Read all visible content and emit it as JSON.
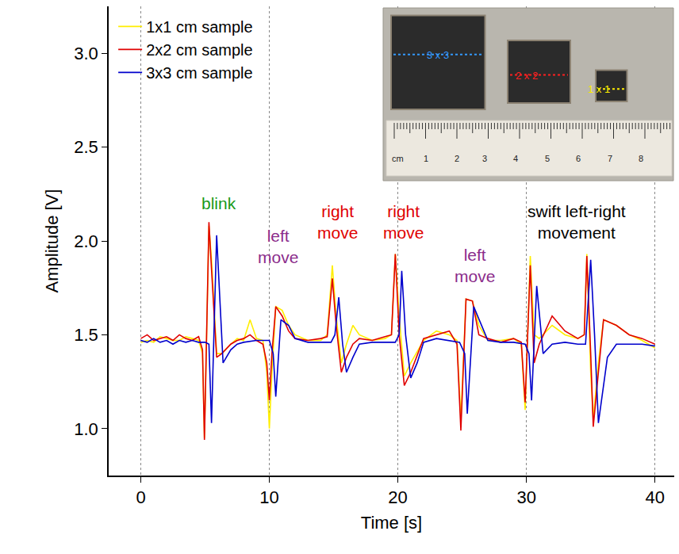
{
  "chart_data": {
    "type": "line",
    "x_label": "Time [s]",
    "y_label": "Amplitude [V]",
    "xlim": [
      -2.5,
      41.5
    ],
    "xticks": [
      0,
      10,
      20,
      30,
      40
    ],
    "ylim": [
      0.75,
      3.25
    ],
    "yticks": [
      {
        "value": 1,
        "label": "1.0"
      },
      1.5,
      {
        "value": 2,
        "label": "2.0"
      },
      2.5,
      {
        "value": 3,
        "label": "3.0"
      }
    ],
    "grid": "x",
    "legend": "top-left",
    "series": [
      {
        "name": "1x1 cm sample",
        "color": "#ffee00",
        "x": [
          0,
          0.5,
          1,
          1.5,
          2,
          2.5,
          3,
          3.5,
          4,
          4.5,
          4.8,
          4.95,
          5.3,
          5.5,
          5.9,
          6.3,
          7,
          7.5,
          8,
          8.5,
          9,
          9.5,
          9.8,
          10.0,
          10.2,
          10.5,
          11,
          11.5,
          12,
          13,
          14,
          14.5,
          14.9,
          15.2,
          15.6,
          16,
          16.5,
          17,
          18,
          19,
          19.5,
          19.8,
          20.1,
          20.5,
          21,
          22,
          23,
          24,
          24.6,
          24.9,
          25.3,
          25.8,
          26.3,
          27,
          28,
          29,
          29.6,
          29.9,
          30.3,
          30.6,
          31,
          32,
          33,
          34,
          34.5,
          34.7,
          35.0,
          35.2,
          35.6,
          36,
          37,
          38,
          39,
          40
        ],
        "values": [
          1.46,
          1.47,
          1.46,
          1.49,
          1.48,
          1.47,
          1.47,
          1.49,
          1.48,
          1.47,
          1.4,
          0.95,
          2.08,
          1.9,
          1.4,
          1.4,
          1.45,
          1.48,
          1.47,
          1.58,
          1.48,
          1.47,
          1.3,
          1.0,
          1.3,
          1.65,
          1.63,
          1.55,
          1.5,
          1.47,
          1.47,
          1.5,
          1.87,
          1.6,
          1.35,
          1.45,
          1.55,
          1.5,
          1.47,
          1.48,
          1.5,
          1.93,
          1.6,
          1.28,
          1.35,
          1.47,
          1.52,
          1.5,
          1.47,
          1.05,
          1.69,
          1.68,
          1.55,
          1.47,
          1.47,
          1.48,
          1.45,
          1.1,
          1.92,
          1.5,
          1.48,
          1.55,
          1.5,
          1.48,
          1.5,
          1.93,
          1.3,
          1.05,
          1.35,
          1.58,
          1.55,
          1.5,
          1.47,
          1.43
        ]
      },
      {
        "name": "2x2 cm sample",
        "color": "#e00000",
        "x": [
          0,
          0.5,
          1,
          1.5,
          2,
          2.5,
          3,
          3.5,
          4,
          4.5,
          4.8,
          4.95,
          5.3,
          5.5,
          5.9,
          6.3,
          7,
          7.5,
          8,
          8.5,
          9,
          9.5,
          9.8,
          10.0,
          10.2,
          10.5,
          11,
          11.5,
          12,
          13,
          14,
          14.5,
          14.9,
          15.2,
          15.6,
          16,
          16.5,
          17,
          18,
          19,
          19.5,
          19.8,
          20.1,
          20.5,
          21,
          22,
          23,
          24,
          24.6,
          24.9,
          25.3,
          25.8,
          26.3,
          27,
          28,
          29,
          29.6,
          29.9,
          30.3,
          30.6,
          31,
          32,
          33,
          34,
          34.5,
          34.7,
          35.0,
          35.2,
          35.6,
          36,
          37,
          38,
          39,
          40
        ],
        "values": [
          1.48,
          1.5,
          1.47,
          1.48,
          1.49,
          1.47,
          1.5,
          1.48,
          1.47,
          1.49,
          1.42,
          0.94,
          2.1,
          1.85,
          1.38,
          1.4,
          1.45,
          1.47,
          1.48,
          1.5,
          1.47,
          1.45,
          1.35,
          1.15,
          1.4,
          1.65,
          1.6,
          1.52,
          1.48,
          1.47,
          1.48,
          1.49,
          1.8,
          1.55,
          1.3,
          1.38,
          1.45,
          1.48,
          1.47,
          1.49,
          1.5,
          1.93,
          1.5,
          1.23,
          1.3,
          1.48,
          1.5,
          1.52,
          1.45,
          0.99,
          1.69,
          1.68,
          1.5,
          1.48,
          1.46,
          1.48,
          1.46,
          1.14,
          1.87,
          1.35,
          1.45,
          1.6,
          1.52,
          1.48,
          1.5,
          1.92,
          1.4,
          1.01,
          1.3,
          1.58,
          1.55,
          1.5,
          1.48,
          1.45
        ]
      },
      {
        "name": "3x3 cm sample",
        "color": "#0000cc",
        "x": [
          0,
          0.5,
          1,
          1.5,
          2,
          2.5,
          3,
          3.5,
          4,
          4.5,
          5,
          5.3,
          5.5,
          5.9,
          6.4,
          7,
          7.5,
          8,
          9,
          10,
          10.3,
          10.5,
          10.9,
          11.5,
          12,
          13,
          14,
          14.8,
          15.1,
          15.4,
          15.7,
          16.0,
          16.5,
          17,
          18,
          19,
          19.8,
          20.1,
          20.3,
          20.6,
          21.0,
          21.5,
          22,
          23,
          24,
          24.8,
          25.2,
          25.4,
          25.9,
          26.5,
          27,
          28,
          29,
          29.9,
          30.2,
          30.4,
          30.8,
          31.3,
          32,
          33,
          34,
          34.6,
          35.0,
          35.3,
          35.6,
          36.3,
          37,
          38,
          39,
          40
        ],
        "values": [
          1.47,
          1.46,
          1.48,
          1.46,
          1.47,
          1.45,
          1.47,
          1.46,
          1.47,
          1.46,
          1.46,
          1.45,
          1.03,
          2.03,
          1.35,
          1.42,
          1.45,
          1.46,
          1.47,
          1.47,
          1.4,
          1.17,
          1.58,
          1.55,
          1.48,
          1.46,
          1.46,
          1.46,
          1.5,
          1.7,
          1.45,
          1.3,
          1.38,
          1.45,
          1.46,
          1.46,
          1.46,
          1.5,
          1.84,
          1.5,
          1.27,
          1.35,
          1.46,
          1.48,
          1.47,
          1.46,
          1.4,
          1.08,
          1.65,
          1.55,
          1.47,
          1.46,
          1.46,
          1.45,
          1.4,
          1.15,
          1.76,
          1.4,
          1.45,
          1.46,
          1.45,
          1.45,
          1.9,
          1.5,
          1.03,
          1.38,
          1.45,
          1.45,
          1.45,
          1.44
        ]
      }
    ],
    "annotations": [
      {
        "lines": [
          "blink"
        ],
        "x": 6.1,
        "y": 2.2,
        "color": "#1a9a1a"
      },
      {
        "lines": [
          "left",
          "move"
        ],
        "x": 10.7,
        "y": 1.97,
        "color": "#8b2c8b"
      },
      {
        "lines": [
          "right",
          "move"
        ],
        "x": 15.3,
        "y": 2.1,
        "color": "#e00000"
      },
      {
        "lines": [
          "right",
          "move"
        ],
        "x": 20.4,
        "y": 2.1,
        "color": "#e00000"
      },
      {
        "lines": [
          "left",
          "move"
        ],
        "x": 26.0,
        "y": 1.87,
        "color": "#8b2c8b"
      },
      {
        "lines": [
          "swift left-right",
          "movement"
        ],
        "x": 33.9,
        "y": 2.1,
        "color": "#000000"
      }
    ],
    "inset": {
      "samples": [
        {
          "label": "3 x 3",
          "size_cm": 3,
          "color": "#3399ff"
        },
        {
          "label": "2 x 2",
          "size_cm": 2,
          "color": "#ff2020"
        },
        {
          "label": "1 x 1",
          "size_cm": 1,
          "color": "#ffee00"
        }
      ],
      "ruler_labels": [
        "cm",
        "1",
        "2",
        "3",
        "4",
        "5",
        "6",
        "7",
        "8"
      ]
    }
  }
}
